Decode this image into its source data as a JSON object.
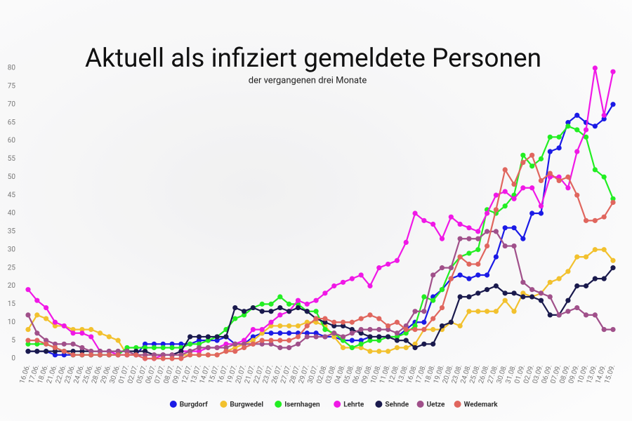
{
  "chart_data": {
    "type": "line",
    "title": "Aktuell als infiziert gemeldete Personen",
    "subtitle": "der vergangenen drei Monate",
    "categories": [
      "16.06.",
      "17.06.",
      "18.06.",
      "21.06.",
      "22.06.",
      "23.06.",
      "24.06.",
      "25.06.",
      "28.06.",
      "29.06.",
      "30.06.",
      "01.07.",
      "02.07.",
      "05.07.",
      "06.07.",
      "07.07.",
      "08.07.",
      "09.07.",
      "12.07.",
      "13.07.",
      "14.07.",
      "15.07.",
      "16.07.",
      "19.07.",
      "20.07.",
      "21.07.",
      "22.07.",
      "23.07.",
      "26.07.",
      "27.07.",
      "28.07.",
      "29.07.",
      "30.07.",
      "02.08.",
      "03.08.",
      "04.08.",
      "05.08.",
      "06.08.",
      "09.08.",
      "10.08.",
      "11.08.",
      "12.08.",
      "13.08.",
      "16.08.",
      "17.08.",
      "18.08.",
      "19.08.",
      "20.08.",
      "23.08.",
      "24.08.",
      "25.08.",
      "26.08.",
      "27.08.",
      "30.08.",
      "31.08.",
      "01.09.",
      "02.09.",
      "03.09.",
      "06.09.",
      "07.09.",
      "08.09.",
      "09.09.",
      "10.09.",
      "13.09.",
      "14.09.",
      "15.09."
    ],
    "ylim": [
      0,
      80
    ],
    "yticks": [
      0,
      5,
      10,
      15,
      20,
      25,
      30,
      35,
      40,
      45,
      50,
      55,
      60,
      65,
      70,
      75,
      80
    ],
    "grid": false,
    "series": [
      {
        "name": "Burgdorf",
        "color": "#1a1ae6",
        "values": [
          2,
          2,
          2,
          1,
          1,
          1,
          1,
          1,
          1,
          1,
          1,
          1,
          1,
          4,
          4,
          4,
          4,
          4,
          4,
          5,
          5,
          5,
          6,
          4,
          4,
          6,
          7,
          7,
          7,
          7,
          7,
          7,
          7,
          6,
          6,
          5,
          5,
          5,
          6,
          6,
          6,
          6,
          8,
          10,
          10,
          17,
          19,
          22,
          23,
          22,
          23,
          23,
          28,
          36,
          36,
          33,
          40,
          40,
          57,
          58,
          65,
          67,
          65,
          64,
          66,
          70
        ]
      },
      {
        "name": "Burgwedel",
        "color": "#f2c12e",
        "values": [
          8,
          12,
          11,
          9,
          9,
          8,
          8,
          8,
          7,
          6,
          5,
          1,
          1,
          1,
          1,
          1,
          1,
          1,
          1,
          1,
          1,
          1,
          2,
          3,
          4,
          5,
          7,
          9,
          9,
          9,
          9,
          10,
          10,
          9,
          6,
          3,
          3,
          3,
          2,
          2,
          2,
          3,
          3,
          4,
          8,
          8,
          8,
          10,
          9,
          13,
          13,
          13,
          13,
          16,
          13,
          18,
          17,
          18,
          21,
          22,
          24,
          28,
          28,
          30,
          30,
          27
        ]
      },
      {
        "name": "Isernhagen",
        "color": "#22ee22",
        "values": [
          4,
          4,
          4,
          3,
          2,
          1,
          1,
          1,
          1,
          1,
          1,
          3,
          3,
          3,
          3,
          3,
          3,
          3,
          4,
          4,
          5,
          6,
          8,
          11,
          12,
          14,
          15,
          15,
          17,
          15,
          15,
          13,
          13,
          8,
          7,
          5,
          3,
          4,
          5,
          5,
          6,
          6,
          7,
          9,
          17,
          16,
          19,
          25,
          28,
          29,
          30,
          41,
          40,
          42,
          45,
          56,
          53,
          55,
          61,
          61,
          64,
          63,
          61,
          52,
          50,
          44
        ]
      },
      {
        "name": "Lehrte",
        "color": "#f018e6",
        "values": [
          19,
          16,
          14,
          10,
          9,
          7,
          7,
          6,
          2,
          2,
          1,
          1,
          1,
          0,
          0,
          1,
          1,
          2,
          2,
          2,
          3,
          3,
          4,
          4,
          5,
          8,
          8,
          10,
          12,
          13,
          16,
          15,
          16,
          18,
          20,
          21,
          22,
          23,
          20,
          25,
          26,
          27,
          32,
          40,
          38,
          37,
          33,
          39,
          37,
          36,
          35,
          40,
          45,
          46,
          44,
          47,
          47,
          42,
          50,
          50,
          47,
          57,
          63,
          80,
          67,
          79
        ]
      },
      {
        "name": "Sehnde",
        "color": "#1a1a4d",
        "values": [
          2,
          2,
          2,
          2,
          2,
          2,
          2,
          2,
          2,
          2,
          2,
          2,
          2,
          2,
          1,
          1,
          1,
          2,
          6,
          6,
          6,
          6,
          6,
          14,
          13,
          14,
          13,
          13,
          14,
          13,
          14,
          13,
          11,
          10,
          9,
          9,
          8,
          7,
          6,
          6,
          6,
          5,
          5,
          3,
          4,
          4,
          9,
          10,
          17,
          17,
          18,
          19,
          20,
          18,
          18,
          17,
          17,
          16,
          12,
          12,
          16,
          20,
          20,
          22,
          22,
          25
        ]
      },
      {
        "name": "Uetze",
        "color": "#a0508a",
        "values": [
          12,
          7,
          5,
          4,
          4,
          4,
          3,
          2,
          2,
          2,
          2,
          2,
          1,
          1,
          1,
          1,
          1,
          1,
          2,
          3,
          3,
          3,
          3,
          4,
          4,
          4,
          4,
          4,
          3,
          3,
          4,
          6,
          6,
          6,
          7,
          6,
          7,
          8,
          8,
          8,
          8,
          7,
          9,
          13,
          13,
          23,
          25,
          25,
          33,
          33,
          33,
          35,
          35,
          31,
          31,
          21,
          19,
          18,
          17,
          12,
          13,
          14,
          12,
          12,
          8,
          8
        ]
      },
      {
        "name": "Wedemark",
        "color": "#e0665e",
        "values": [
          5,
          5,
          4,
          3,
          2,
          1,
          1,
          1,
          1,
          1,
          1,
          1,
          1,
          0,
          0,
          0,
          0,
          0,
          1,
          1,
          1,
          1,
          2,
          2,
          3,
          4,
          5,
          5,
          5,
          5,
          6,
          9,
          11,
          11,
          10,
          10,
          10,
          11,
          12,
          11,
          9,
          10,
          8,
          8,
          8,
          11,
          14,
          22,
          28,
          26,
          26,
          31,
          41,
          52,
          48,
          54,
          56,
          49,
          51,
          49,
          50,
          45,
          38,
          38,
          39,
          43
        ]
      }
    ]
  }
}
